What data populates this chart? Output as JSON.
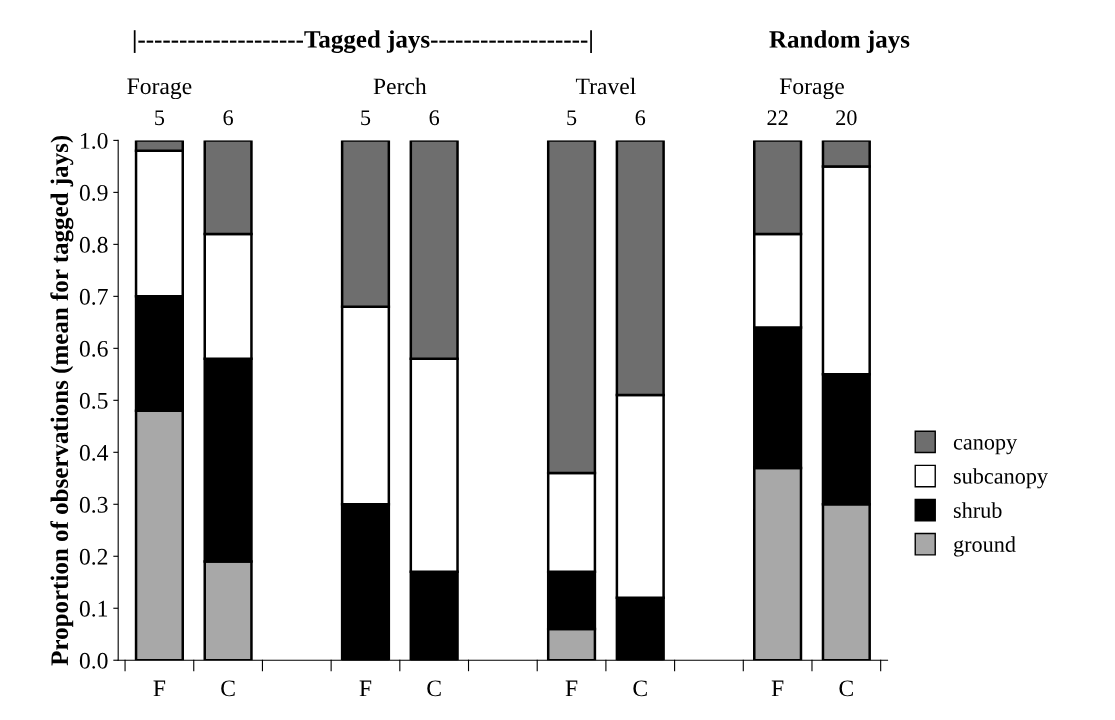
{
  "chart_data": {
    "type": "bar",
    "stacked": true,
    "ylabel": "Proportion of observations (mean for tagged jays)",
    "categories": [
      "F",
      "C",
      null,
      "F",
      "C",
      null,
      "F",
      "C",
      null,
      "F",
      "C"
    ],
    "series": [
      {
        "name": "ground",
        "color": "#a8a8a8",
        "values": [
          0.48,
          0.19,
          null,
          0,
          0,
          null,
          0.06,
          0,
          null,
          0.37,
          0.3
        ]
      },
      {
        "name": "shrub",
        "color": "#000000",
        "values": [
          0.22,
          0.39,
          null,
          0.3,
          0.17,
          null,
          0.11,
          0.12,
          null,
          0.27,
          0.25
        ]
      },
      {
        "name": "subcanopy",
        "color": "#ffffff",
        "values": [
          0.28,
          0.24,
          null,
          0.38,
          0.41,
          null,
          0.19,
          0.39,
          null,
          0.18,
          0.4
        ]
      },
      {
        "name": "canopy",
        "color": "#6e6e6e",
        "values": [
          0.02,
          0.18,
          null,
          0.32,
          0.42,
          null,
          0.64,
          0.49,
          null,
          0.18,
          0.05
        ]
      }
    ],
    "ylim": [
      0,
      1
    ],
    "yticks": [
      {
        "value": 0,
        "label": "0.0"
      },
      0.1,
      0.2,
      0.3,
      0.4,
      0.5,
      0.6,
      0.7,
      0.8,
      0.9,
      {
        "value": 1,
        "label": "1.0"
      }
    ],
    "legend": "right",
    "annotations": [
      "|--------------------Tagged jays-------------------|",
      "Random jays",
      "Forage",
      "Perch",
      "Travel",
      "Forage",
      "5",
      "6",
      "5",
      "6",
      "5",
      "6",
      "22",
      "20"
    ]
  }
}
